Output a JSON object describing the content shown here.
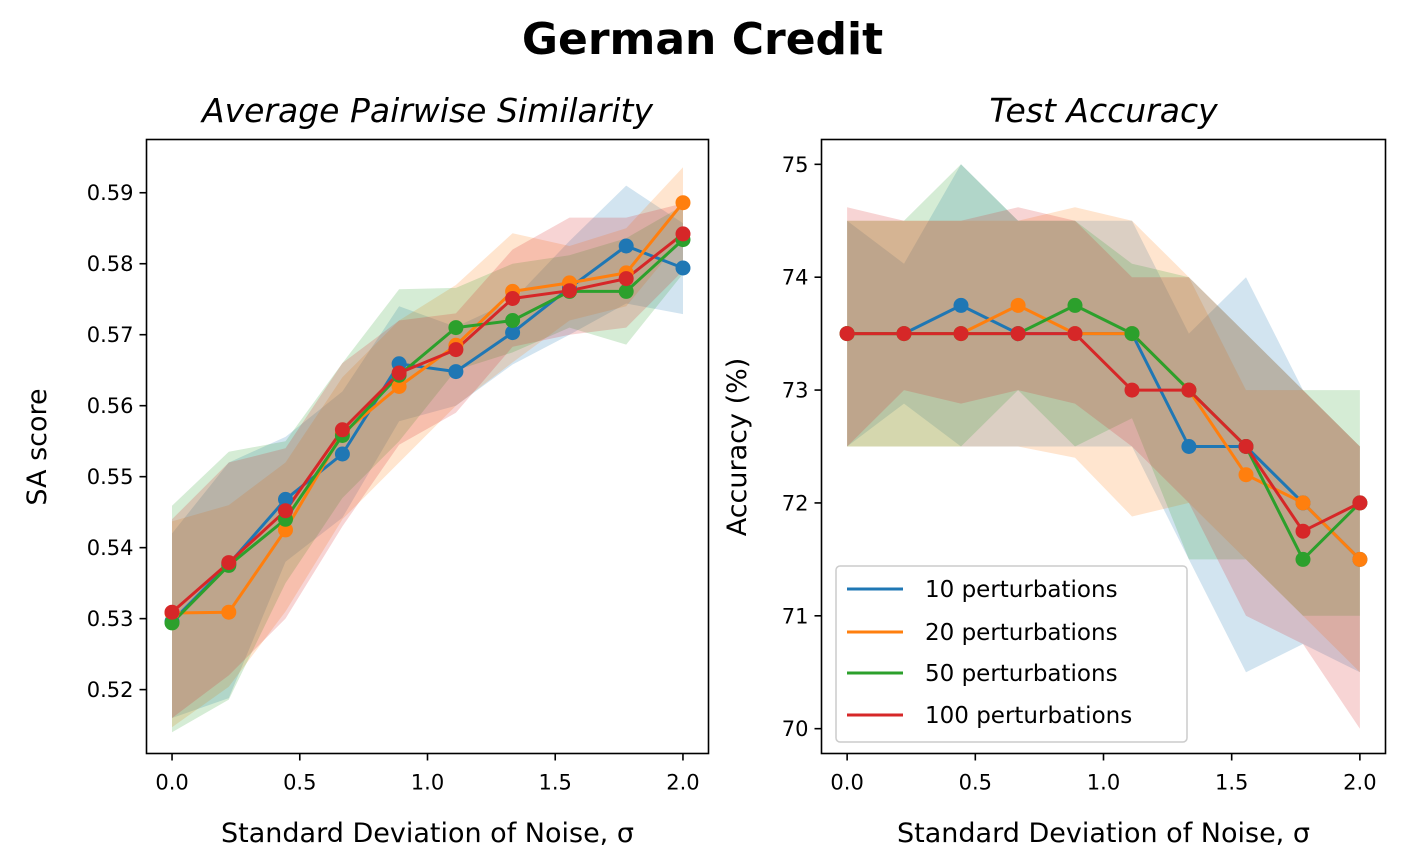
{
  "figure": {
    "title": "German Credit"
  },
  "chart_data": [
    {
      "type": "line",
      "title": "Average Pairwise Similarity",
      "xlabel": "Standard Deviation of Noise, σ",
      "ylabel": "SA score",
      "xlim": [
        -0.1,
        2.1
      ],
      "ylim": [
        0.511,
        0.5975
      ],
      "xticks": [
        0.0,
        0.5,
        1.0,
        1.5,
        2.0
      ],
      "xtick_labels": [
        "0.0",
        "0.5",
        "1.0",
        "1.5",
        "2.0"
      ],
      "yticks": [
        0.52,
        0.53,
        0.54,
        0.55,
        0.56,
        0.57,
        0.58,
        0.59
      ],
      "ytick_labels": [
        "0.52",
        "0.53",
        "0.54",
        "0.55",
        "0.56",
        "0.57",
        "0.58",
        "0.59"
      ],
      "grid": false,
      "x": [
        0.0,
        0.222,
        0.444,
        0.667,
        0.889,
        1.111,
        1.333,
        1.556,
        1.778,
        2.0
      ],
      "series": [
        {
          "name": "10 perturbations",
          "color": "#1f77b4",
          "values": [
            0.5296,
            0.5377,
            0.5468,
            0.5532,
            0.5659,
            0.5648,
            0.5703,
            0.5766,
            0.5825,
            0.5794
          ],
          "lower": [
            0.516,
            0.5188,
            0.538,
            0.5442,
            0.5578,
            0.56,
            0.5658,
            0.57,
            0.5744,
            0.5729
          ],
          "upper": [
            0.542,
            0.552,
            0.5556,
            0.562,
            0.574,
            0.5711,
            0.5748,
            0.5832,
            0.591,
            0.5857
          ]
        },
        {
          "name": "20 perturbations",
          "color": "#ff7f0e",
          "values": [
            0.5308,
            0.5309,
            0.5425,
            0.5561,
            0.5627,
            0.5685,
            0.5761,
            0.5773,
            0.5787,
            0.5886
          ],
          "lower": [
            0.5147,
            0.5204,
            0.531,
            0.544,
            0.552,
            0.56,
            0.5661,
            0.572,
            0.574,
            0.5837
          ],
          "upper": [
            0.5437,
            0.546,
            0.552,
            0.564,
            0.572,
            0.577,
            0.5843,
            0.5825,
            0.585,
            0.5936
          ]
        },
        {
          "name": "50 perturbations",
          "color": "#2ca02c",
          "values": [
            0.5294,
            0.5375,
            0.544,
            0.5558,
            0.5643,
            0.571,
            0.572,
            0.5761,
            0.5761,
            0.5834
          ],
          "lower": [
            0.514,
            0.5186,
            0.535,
            0.547,
            0.555,
            0.565,
            0.5675,
            0.571,
            0.5686,
            0.5786
          ],
          "upper": [
            0.5459,
            0.5535,
            0.555,
            0.566,
            0.5764,
            0.5766,
            0.58,
            0.5812,
            0.5836,
            0.5882
          ]
        },
        {
          "name": "100 perturbations",
          "color": "#d62728",
          "values": [
            0.5309,
            0.5379,
            0.5452,
            0.5566,
            0.5646,
            0.5679,
            0.5751,
            0.5762,
            0.5779,
            0.5842
          ],
          "lower": [
            0.516,
            0.522,
            0.53,
            0.543,
            0.5545,
            0.559,
            0.5683,
            0.57,
            0.571,
            0.579
          ],
          "upper": [
            0.544,
            0.552,
            0.554,
            0.566,
            0.572,
            0.573,
            0.582,
            0.5865,
            0.5865,
            0.5885
          ]
        }
      ]
    },
    {
      "type": "line",
      "title": "Test Accuracy",
      "xlabel": "Standard Deviation of Noise, σ",
      "ylabel": "Accuracy (%)",
      "xlim": [
        -0.1,
        2.1
      ],
      "ylim": [
        69.78,
        75.22
      ],
      "xticks": [
        0.0,
        0.5,
        1.0,
        1.5,
        2.0
      ],
      "xtick_labels": [
        "0.0",
        "0.5",
        "1.0",
        "1.5",
        "2.0"
      ],
      "yticks": [
        70,
        71,
        72,
        73,
        74,
        75
      ],
      "ytick_labels": [
        "70",
        "71",
        "72",
        "73",
        "74",
        "75"
      ],
      "grid": false,
      "legend": {
        "position": "lower-left",
        "entries": [
          "10 perturbations",
          "20 perturbations",
          "50 perturbations",
          "100 perturbations"
        ]
      },
      "x": [
        0.0,
        0.222,
        0.444,
        0.667,
        0.889,
        1.111,
        1.333,
        1.556,
        1.778,
        2.0
      ],
      "series": [
        {
          "name": "10 perturbations",
          "color": "#1f77b4",
          "values": [
            73.5,
            73.5,
            73.75,
            73.5,
            73.5,
            73.5,
            72.5,
            72.5,
            72.0,
            71.5
          ],
          "lower": [
            72.5,
            72.88,
            72.5,
            72.5,
            72.5,
            72.5,
            71.5,
            70.5,
            70.75,
            70.5
          ],
          "upper": [
            74.5,
            74.12,
            75.0,
            74.5,
            74.5,
            74.5,
            73.5,
            74.0,
            73.0,
            72.5
          ]
        },
        {
          "name": "20 perturbations",
          "color": "#ff7f0e",
          "values": [
            73.5,
            73.5,
            73.5,
            73.75,
            73.5,
            73.5,
            73.0,
            72.25,
            72.0,
            71.5
          ],
          "lower": [
            72.5,
            72.5,
            72.5,
            72.5,
            72.4,
            71.88,
            72.0,
            71.5,
            71.0,
            70.5
          ],
          "upper": [
            74.5,
            74.5,
            74.5,
            74.5,
            74.62,
            74.5,
            74.0,
            73.0,
            73.0,
            72.5
          ]
        },
        {
          "name": "50 perturbations",
          "color": "#2ca02c",
          "values": [
            73.5,
            73.5,
            73.5,
            73.5,
            73.75,
            73.5,
            73.0,
            72.5,
            71.5,
            72.0
          ],
          "lower": [
            72.5,
            72.5,
            72.5,
            73.0,
            72.5,
            72.75,
            71.5,
            71.5,
            71.0,
            71.0
          ],
          "upper": [
            74.5,
            74.5,
            75.0,
            74.5,
            74.5,
            74.12,
            74.0,
            73.5,
            73.0,
            73.0
          ]
        },
        {
          "name": "100 perturbations",
          "color": "#d62728",
          "values": [
            73.5,
            73.5,
            73.5,
            73.5,
            73.5,
            73.0,
            73.0,
            72.5,
            71.75,
            72.0
          ],
          "lower": [
            72.5,
            73.0,
            72.88,
            73.0,
            72.88,
            72.5,
            72.0,
            71.0,
            70.75,
            70.0
          ],
          "upper": [
            74.62,
            74.5,
            74.5,
            74.62,
            74.5,
            74.0,
            74.0,
            73.5,
            73.0,
            72.5
          ]
        }
      ]
    }
  ]
}
